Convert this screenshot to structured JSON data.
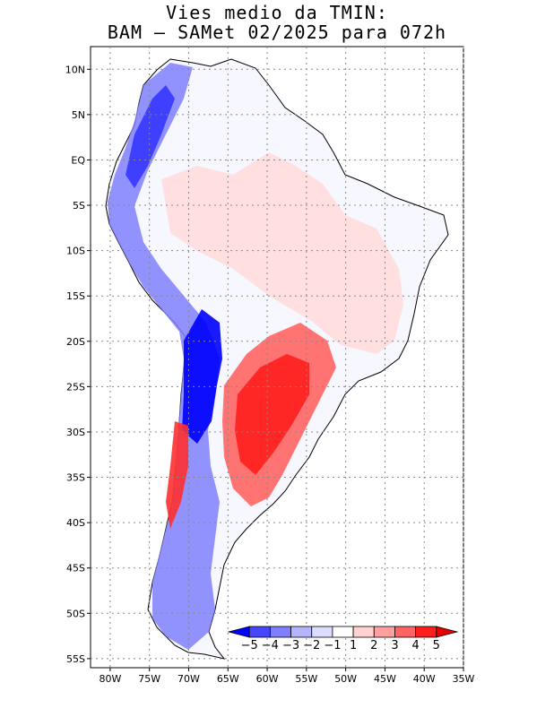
{
  "title": {
    "line1": "Vies medio da TMIN:",
    "line2": "BAM – SAMet 02/2025  para 072h"
  },
  "map": {
    "region": "South America",
    "lat_ticks": [
      "10N",
      "5N",
      "EQ",
      "5S",
      "10S",
      "15S",
      "20S",
      "25S",
      "30S",
      "35S",
      "40S",
      "45S",
      "50S",
      "55S"
    ],
    "lon_ticks": [
      "80W",
      "75W",
      "70W",
      "65W",
      "60W",
      "55W",
      "50W",
      "45W",
      "40W",
      "35W"
    ],
    "lat_values": [
      10,
      5,
      0,
      -5,
      -10,
      -15,
      -20,
      -25,
      -30,
      -35,
      -40,
      -45,
      -50,
      -55
    ],
    "lon_values": [
      -80,
      -75,
      -70,
      -65,
      -60,
      -55,
      -50,
      -45,
      -40,
      -35
    ],
    "lon_range": [
      -82.5,
      -35
    ],
    "lat_range": [
      -56,
      12.5
    ],
    "grid": "dotted"
  },
  "colorbar": {
    "labels": [
      "−5",
      "−4",
      "−3",
      "−2",
      "−1",
      "1",
      "2",
      "3",
      "4",
      "5"
    ],
    "colors": [
      "#0000ff",
      "#4646ff",
      "#8080ff",
      "#b4b4ff",
      "#dcdcff",
      "#ffffff",
      "#ffd2d2",
      "#ffa0a0",
      "#ff6464",
      "#ff1e1e",
      "#e60000"
    ]
  }
}
